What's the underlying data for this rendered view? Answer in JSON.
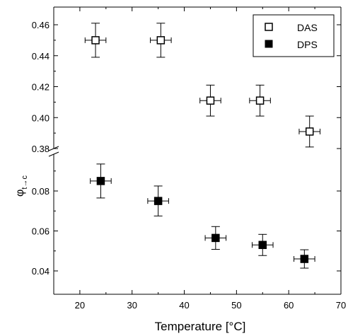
{
  "chart_data": {
    "type": "scatter",
    "xlabel": "Temperature [°C]",
    "ylabel_main": "φ",
    "ylabel_sub": "t→c",
    "xlim": [
      15,
      70
    ],
    "x_ticks": [
      20,
      30,
      40,
      50,
      60,
      70
    ],
    "axis_break": true,
    "upper_segment": {
      "ylim": [
        0.38,
        0.465
      ],
      "y_ticks": [
        0.38,
        0.4,
        0.42,
        0.44,
        0.46
      ]
    },
    "lower_segment": {
      "ylim": [
        0.03,
        0.097
      ],
      "y_ticks": [
        0.04,
        0.06,
        0.08
      ]
    },
    "grid": false,
    "legend_position": "top-right",
    "series": [
      {
        "name": "DAS",
        "marker": "open-square",
        "segment": "upper",
        "points": [
          {
            "x": 23,
            "y": 0.45,
            "xerr": 2,
            "yerr": 0.011
          },
          {
            "x": 35.5,
            "y": 0.45,
            "xerr": 2,
            "yerr": 0.011
          },
          {
            "x": 45,
            "y": 0.411,
            "xerr": 2,
            "yerr": 0.01
          },
          {
            "x": 54.5,
            "y": 0.411,
            "xerr": 2,
            "yerr": 0.01
          },
          {
            "x": 64,
            "y": 0.391,
            "xerr": 2,
            "yerr": 0.01
          }
        ]
      },
      {
        "name": "DPS",
        "marker": "filled-square",
        "segment": "lower",
        "points": [
          {
            "x": 24,
            "y": 0.085,
            "xerr": 2,
            "yerr": 0.0085
          },
          {
            "x": 35,
            "y": 0.075,
            "xerr": 2,
            "yerr": 0.0075
          },
          {
            "x": 46,
            "y": 0.0565,
            "xerr": 2,
            "yerr": 0.0057
          },
          {
            "x": 55,
            "y": 0.053,
            "xerr": 2,
            "yerr": 0.0053
          },
          {
            "x": 63,
            "y": 0.046,
            "xerr": 2,
            "yerr": 0.0046
          }
        ]
      }
    ]
  }
}
